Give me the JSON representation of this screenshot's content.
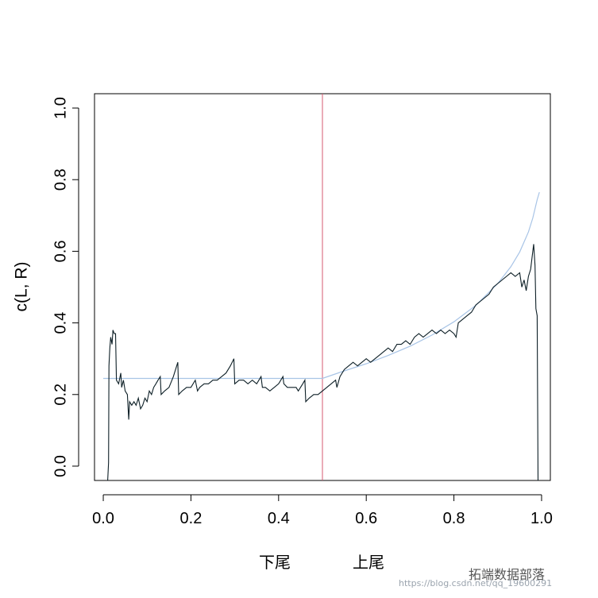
{
  "chart_data": {
    "type": "line",
    "title": "",
    "ylabel": "c(L, R)",
    "xlabel_left": "下尾",
    "xlabel_right": "上尾",
    "xlim": [
      -0.02,
      1.02
    ],
    "ylim": [
      -0.04,
      1.04
    ],
    "xticks": [
      "0.0",
      "0.2",
      "0.4",
      "0.6",
      "0.8",
      "1.0"
    ],
    "yticks": [
      "0.0",
      "0.2",
      "0.4",
      "0.6",
      "0.8",
      "1.0"
    ],
    "vline_x": 0.5,
    "colors": {
      "empirical": "#0d1f26",
      "theoretical": "#a8c4e6",
      "vline": "#d45a72"
    },
    "series": [
      {
        "role": "empirical",
        "points": [
          [
            0.01,
            -0.04
          ],
          [
            0.012,
            0.01
          ],
          [
            0.013,
            0.28
          ],
          [
            0.015,
            0.33
          ],
          [
            0.017,
            0.36
          ],
          [
            0.02,
            0.34
          ],
          [
            0.022,
            0.38
          ],
          [
            0.025,
            0.37
          ],
          [
            0.028,
            0.37
          ],
          [
            0.03,
            0.24
          ],
          [
            0.035,
            0.23
          ],
          [
            0.04,
            0.26
          ],
          [
            0.042,
            0.22
          ],
          [
            0.046,
            0.24
          ],
          [
            0.05,
            0.21
          ],
          [
            0.055,
            0.2
          ],
          [
            0.058,
            0.13
          ],
          [
            0.06,
            0.18
          ],
          [
            0.065,
            0.17
          ],
          [
            0.07,
            0.18
          ],
          [
            0.075,
            0.17
          ],
          [
            0.08,
            0.19
          ],
          [
            0.085,
            0.16
          ],
          [
            0.09,
            0.17
          ],
          [
            0.095,
            0.19
          ],
          [
            0.1,
            0.18
          ],
          [
            0.105,
            0.21
          ],
          [
            0.11,
            0.2
          ],
          [
            0.115,
            0.22
          ],
          [
            0.12,
            0.23
          ],
          [
            0.125,
            0.24
          ],
          [
            0.13,
            0.25
          ],
          [
            0.132,
            0.2
          ],
          [
            0.14,
            0.21
          ],
          [
            0.15,
            0.22
          ],
          [
            0.16,
            0.25
          ],
          [
            0.165,
            0.27
          ],
          [
            0.17,
            0.29
          ],
          [
            0.172,
            0.2
          ],
          [
            0.18,
            0.21
          ],
          [
            0.19,
            0.22
          ],
          [
            0.2,
            0.22
          ],
          [
            0.21,
            0.24
          ],
          [
            0.215,
            0.21
          ],
          [
            0.22,
            0.22
          ],
          [
            0.23,
            0.23
          ],
          [
            0.24,
            0.23
          ],
          [
            0.25,
            0.24
          ],
          [
            0.26,
            0.24
          ],
          [
            0.27,
            0.25
          ],
          [
            0.28,
            0.26
          ],
          [
            0.29,
            0.28
          ],
          [
            0.298,
            0.3
          ],
          [
            0.3,
            0.23
          ],
          [
            0.31,
            0.24
          ],
          [
            0.32,
            0.24
          ],
          [
            0.33,
            0.23
          ],
          [
            0.34,
            0.24
          ],
          [
            0.35,
            0.23
          ],
          [
            0.355,
            0.24
          ],
          [
            0.36,
            0.25
          ],
          [
            0.363,
            0.22
          ],
          [
            0.37,
            0.22
          ],
          [
            0.38,
            0.21
          ],
          [
            0.39,
            0.22
          ],
          [
            0.4,
            0.23
          ],
          [
            0.405,
            0.24
          ],
          [
            0.41,
            0.25
          ],
          [
            0.412,
            0.23
          ],
          [
            0.42,
            0.22
          ],
          [
            0.43,
            0.22
          ],
          [
            0.44,
            0.22
          ],
          [
            0.445,
            0.21
          ],
          [
            0.45,
            0.22
          ],
          [
            0.455,
            0.23
          ],
          [
            0.46,
            0.24
          ],
          [
            0.462,
            0.18
          ],
          [
            0.47,
            0.19
          ],
          [
            0.48,
            0.2
          ],
          [
            0.49,
            0.2
          ],
          [
            0.5,
            0.21
          ],
          [
            0.51,
            0.22
          ],
          [
            0.52,
            0.23
          ],
          [
            0.53,
            0.24
          ],
          [
            0.533,
            0.22
          ],
          [
            0.54,
            0.25
          ],
          [
            0.55,
            0.27
          ],
          [
            0.56,
            0.28
          ],
          [
            0.57,
            0.29
          ],
          [
            0.58,
            0.28
          ],
          [
            0.59,
            0.29
          ],
          [
            0.6,
            0.3
          ],
          [
            0.61,
            0.29
          ],
          [
            0.62,
            0.3
          ],
          [
            0.63,
            0.31
          ],
          [
            0.64,
            0.32
          ],
          [
            0.65,
            0.33
          ],
          [
            0.66,
            0.32
          ],
          [
            0.67,
            0.34
          ],
          [
            0.68,
            0.34
          ],
          [
            0.69,
            0.35
          ],
          [
            0.7,
            0.34
          ],
          [
            0.71,
            0.36
          ],
          [
            0.72,
            0.37
          ],
          [
            0.73,
            0.36
          ],
          [
            0.74,
            0.37
          ],
          [
            0.75,
            0.38
          ],
          [
            0.76,
            0.37
          ],
          [
            0.77,
            0.38
          ],
          [
            0.78,
            0.37
          ],
          [
            0.79,
            0.38
          ],
          [
            0.8,
            0.37
          ],
          [
            0.805,
            0.36
          ],
          [
            0.81,
            0.4
          ],
          [
            0.82,
            0.41
          ],
          [
            0.83,
            0.42
          ],
          [
            0.84,
            0.43
          ],
          [
            0.85,
            0.45
          ],
          [
            0.86,
            0.46
          ],
          [
            0.87,
            0.47
          ],
          [
            0.88,
            0.48
          ],
          [
            0.89,
            0.5
          ],
          [
            0.9,
            0.51
          ],
          [
            0.91,
            0.52
          ],
          [
            0.92,
            0.53
          ],
          [
            0.93,
            0.54
          ],
          [
            0.94,
            0.53
          ],
          [
            0.95,
            0.54
          ],
          [
            0.955,
            0.5
          ],
          [
            0.96,
            0.52
          ],
          [
            0.965,
            0.49
          ],
          [
            0.97,
            0.53
          ],
          [
            0.975,
            0.55
          ],
          [
            0.98,
            0.6
          ],
          [
            0.982,
            0.62
          ],
          [
            0.985,
            0.56
          ],
          [
            0.987,
            0.44
          ],
          [
            0.99,
            0.42
          ],
          [
            0.992,
            -0.04
          ]
        ]
      },
      {
        "role": "theoretical",
        "points": [
          [
            0.0,
            0.245
          ],
          [
            0.1,
            0.245
          ],
          [
            0.2,
            0.245
          ],
          [
            0.3,
            0.245
          ],
          [
            0.4,
            0.245
          ],
          [
            0.5,
            0.245
          ],
          [
            0.55,
            0.266
          ],
          [
            0.6,
            0.286
          ],
          [
            0.65,
            0.309
          ],
          [
            0.7,
            0.335
          ],
          [
            0.75,
            0.366
          ],
          [
            0.8,
            0.403
          ],
          [
            0.85,
            0.449
          ],
          [
            0.9,
            0.51
          ],
          [
            0.93,
            0.557
          ],
          [
            0.95,
            0.598
          ],
          [
            0.97,
            0.654
          ],
          [
            0.98,
            0.693
          ],
          [
            0.99,
            0.744
          ],
          [
            0.995,
            0.765
          ]
        ]
      }
    ]
  },
  "watermark": {
    "text": "拓端数据部落",
    "sub": "https://blog.csdn.net/qq_19600291"
  }
}
